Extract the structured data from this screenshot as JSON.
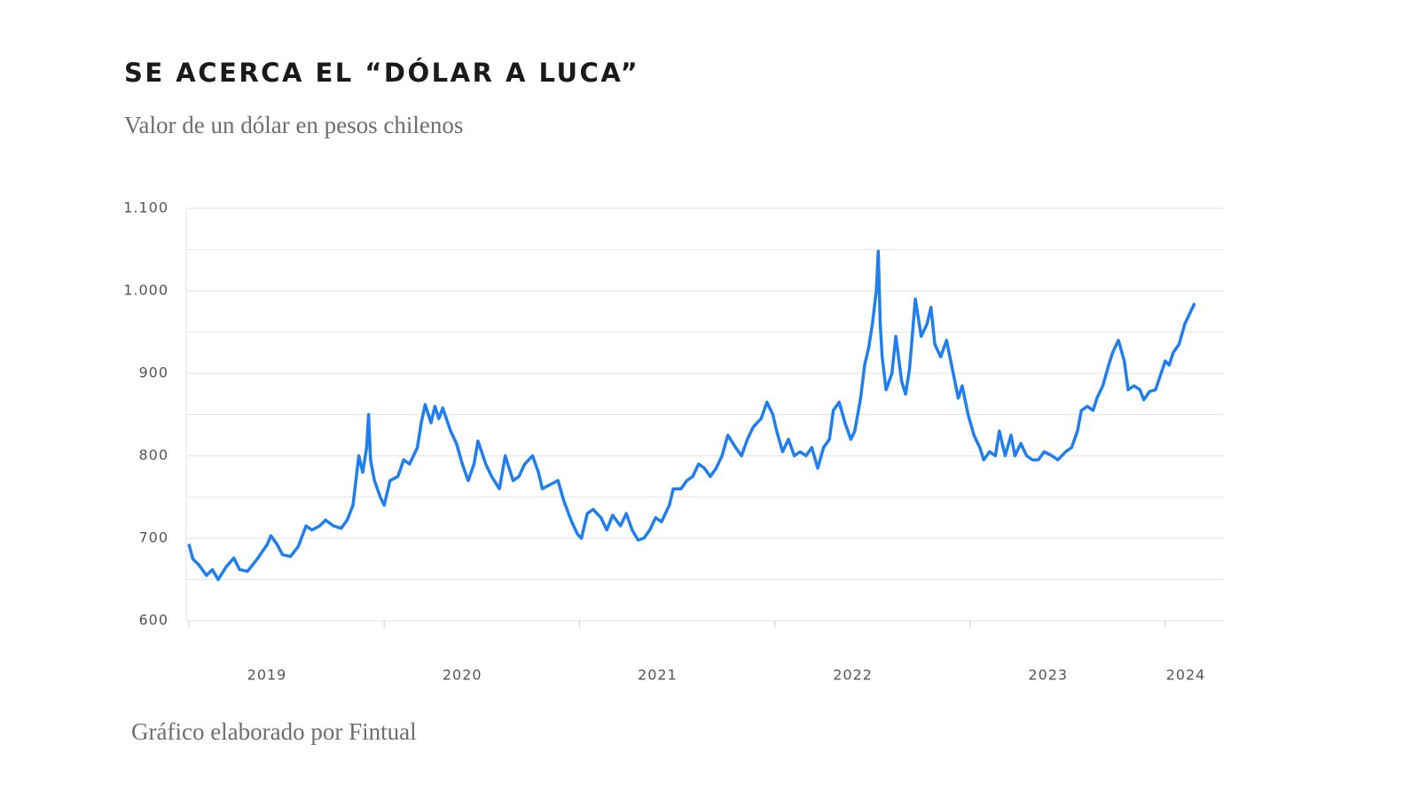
{
  "chart_data": {
    "type": "line",
    "title": "SE ACERCA EL “DÓLAR A LUCA”",
    "subtitle": "Valor de un dólar en pesos chilenos",
    "footnote": "Gráfico elaborado por Fintual",
    "x": [
      2019.0,
      2019.02,
      2019.05,
      2019.09,
      2019.12,
      2019.15,
      2019.19,
      2019.23,
      2019.26,
      2019.3,
      2019.35,
      2019.4,
      2019.42,
      2019.45,
      2019.48,
      2019.52,
      2019.56,
      2019.6,
      2019.63,
      2019.67,
      2019.7,
      2019.74,
      2019.78,
      2019.81,
      2019.84,
      2019.87,
      2019.89,
      2019.91,
      2019.92,
      2019.93,
      2019.95,
      2019.98,
      2020.0,
      2020.03,
      2020.07,
      2020.1,
      2020.13,
      2020.17,
      2020.19,
      2020.21,
      2020.24,
      2020.26,
      2020.28,
      2020.3,
      2020.34,
      2020.37,
      2020.4,
      2020.43,
      2020.46,
      2020.48,
      2020.52,
      2020.55,
      2020.59,
      2020.62,
      2020.66,
      2020.69,
      2020.72,
      2020.76,
      2020.79,
      2020.81,
      2020.85,
      2020.89,
      2020.92,
      2020.96,
      2020.99,
      2021.01,
      2021.04,
      2021.07,
      2021.11,
      2021.14,
      2021.17,
      2021.21,
      2021.24,
      2021.27,
      2021.3,
      2021.33,
      2021.36,
      2021.39,
      2021.42,
      2021.46,
      2021.48,
      2021.52,
      2021.55,
      2021.58,
      2021.61,
      2021.64,
      2021.67,
      2021.7,
      2021.73,
      2021.76,
      2021.8,
      2021.83,
      2021.86,
      2021.89,
      2021.93,
      2021.96,
      2021.99,
      2022.01,
      2022.04,
      2022.07,
      2022.1,
      2022.13,
      2022.16,
      2022.19,
      2022.22,
      2022.25,
      2022.28,
      2022.3,
      2022.33,
      2022.36,
      2022.39,
      2022.41,
      2022.44,
      2022.46,
      2022.48,
      2022.5,
      2022.52,
      2022.53,
      2022.54,
      2022.55,
      2022.57,
      2022.6,
      2022.62,
      2022.65,
      2022.67,
      2022.69,
      2022.72,
      2022.75,
      2022.78,
      2022.8,
      2022.82,
      2022.85,
      2022.88,
      2022.91,
      2022.94,
      2022.96,
      2022.99,
      2023.02,
      2023.05,
      2023.07,
      2023.1,
      2023.13,
      2023.15,
      2023.18,
      2023.21,
      2023.23,
      2023.26,
      2023.29,
      2023.32,
      2023.35,
      2023.38,
      2023.42,
      2023.45,
      2023.49,
      2023.52,
      2023.55,
      2023.57,
      2023.6,
      2023.63,
      2023.65,
      2023.68,
      2023.71,
      2023.73,
      2023.76,
      2023.79,
      2023.81,
      2023.84,
      2023.87,
      2023.89,
      2023.92,
      2023.95,
      2024.0,
      2024.02,
      2024.04,
      2024.07,
      2024.1,
      2024.12,
      2024.15
    ],
    "series": [
      {
        "color": "#1f7ff0",
        "values": [
          693,
          675,
          668,
          655,
          662,
          650,
          665,
          676,
          662,
          660,
          675,
          692,
          703,
          693,
          680,
          678,
          690,
          715,
          710,
          715,
          722,
          715,
          712,
          722,
          740,
          800,
          780,
          810,
          850,
          795,
          770,
          750,
          740,
          770,
          775,
          795,
          790,
          810,
          840,
          862,
          840,
          860,
          845,
          858,
          830,
          815,
          790,
          770,
          790,
          818,
          790,
          775,
          760,
          800,
          770,
          775,
          790,
          800,
          780,
          760,
          765,
          770,
          745,
          720,
          705,
          700,
          730,
          735,
          725,
          710,
          728,
          715,
          730,
          710,
          698,
          700,
          710,
          725,
          720,
          740,
          760,
          760,
          770,
          775,
          790,
          785,
          775,
          785,
          800,
          825,
          810,
          800,
          820,
          835,
          845,
          865,
          850,
          830,
          805,
          820,
          800,
          805,
          800,
          810,
          785,
          810,
          820,
          855,
          865,
          840,
          820,
          830,
          870,
          910,
          930,
          960,
          1000,
          1048,
          960,
          920,
          880,
          900,
          945,
          890,
          875,
          905,
          990,
          945,
          960,
          980,
          935,
          920,
          940,
          905,
          870,
          885,
          850,
          825,
          810,
          795,
          805,
          800,
          830,
          800,
          825,
          800,
          815,
          800,
          795,
          795,
          805,
          800,
          795,
          805,
          810,
          830,
          855,
          860,
          855,
          870,
          885,
          910,
          925,
          940,
          915,
          880,
          885,
          880,
          868,
          878,
          880,
          915,
          910,
          925,
          935,
          960,
          970,
          985
        ]
      }
    ],
    "xlim": [
      2019,
      2024.3
    ],
    "xticks": [
      2019,
      2020,
      2021,
      2022,
      2023,
      2024
    ],
    "ylim": [
      600,
      1100
    ],
    "yticks": [
      600,
      700,
      800,
      900,
      {
        "value": 1000,
        "label": "1.000"
      },
      {
        "value": 1100,
        "label": "1.100"
      }
    ],
    "minor_yticks": [
      650,
      750,
      850,
      950,
      1050
    ],
    "grid": true
  }
}
